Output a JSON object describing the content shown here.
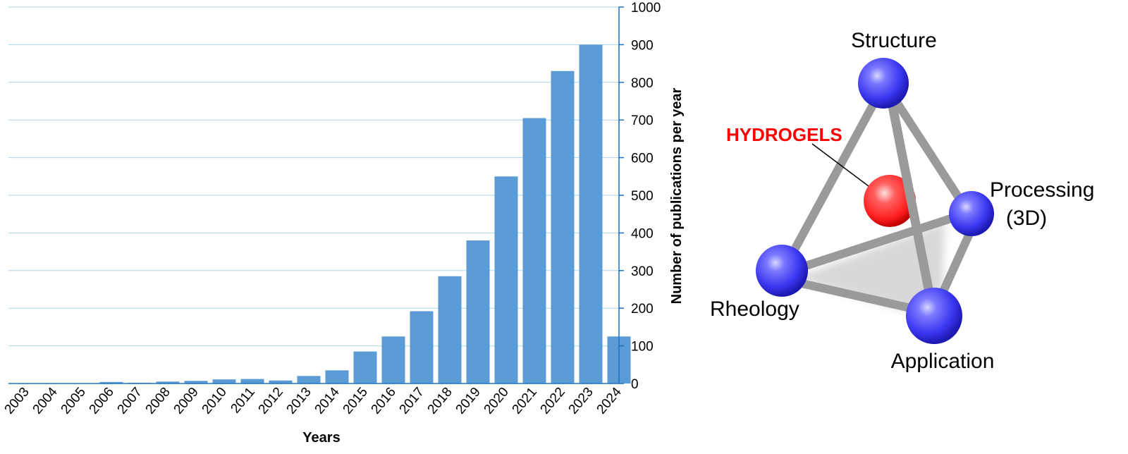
{
  "chart_data": {
    "type": "bar",
    "categories": [
      "2003",
      "2004",
      "2005",
      "2006",
      "2007",
      "2008",
      "2009",
      "2010",
      "2011",
      "2012",
      "2013",
      "2014",
      "2015",
      "2016",
      "2017",
      "2018",
      "2019",
      "2020",
      "2021",
      "2022",
      "2023",
      "2024"
    ],
    "values": [
      0,
      0,
      0,
      4,
      2,
      5,
      7,
      11,
      12,
      8,
      20,
      35,
      85,
      125,
      192,
      285,
      380,
      550,
      705,
      830,
      900,
      125
    ],
    "xlabel": "Years",
    "ylabel": "Number of publications per year",
    "ylim": [
      0,
      1000
    ],
    "yticks": [
      "0",
      "100",
      "200",
      "300",
      "400",
      "500",
      "600",
      "700",
      "800",
      "900",
      "1000"
    ],
    "y_axis_position": "right",
    "grid": true,
    "bar_color": "#5b9bd5",
    "grid_color": "#aed2ec"
  },
  "diagram": {
    "nodes": {
      "top": "Structure",
      "right_line1": "Processing",
      "right_line2": "(3D)",
      "left": "Rheology",
      "bottom": "Application"
    },
    "center": "HYDROGELS",
    "colors": {
      "node": "#3b37f0",
      "center": "#ff2020",
      "center_label": "#ff0000",
      "rod": "#9a9a9a"
    }
  }
}
